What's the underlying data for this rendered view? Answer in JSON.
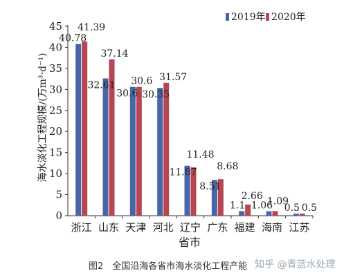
{
  "chart_data": {
    "type": "bar",
    "ylabel": "海水淡化工程规模/(万m³·d⁻¹)",
    "xlabel": "省市",
    "ylim": [
      0,
      45
    ],
    "yticks": [
      0,
      5,
      10,
      15,
      20,
      25,
      30,
      35,
      40,
      45
    ],
    "categories": [
      "浙江",
      "山东",
      "天津",
      "河北",
      "辽宁",
      "广东",
      "福建",
      "海南",
      "江苏"
    ],
    "series": [
      {
        "name": "2019年",
        "color": "#4a64a8",
        "values": [
          40.78,
          32.61,
          30.6,
          30.35,
          11.87,
          8.51,
          1.1,
          1.06,
          0.5
        ],
        "labels": [
          "40.78",
          "32.61",
          "30.6",
          "30.35",
          "11.87",
          "8.51",
          "1.1",
          "1.06",
          "0.5"
        ]
      },
      {
        "name": "2020年",
        "color": "#b64652",
        "values": [
          41.39,
          37.14,
          30.6,
          31.57,
          11.48,
          8.68,
          2.66,
          1.09,
          0.5
        ],
        "labels": [
          "41.39",
          "37.14",
          "30.6",
          "31.57",
          "11.48",
          "8.68",
          "2.66",
          "1.09",
          "0.5"
        ]
      }
    ],
    "legend_position": "top-right",
    "grid": false
  },
  "caption": {
    "text": "图2　全国沿海各省市海水淡化工程产能",
    "watermark": "知乎 @青蓝水处理"
  }
}
